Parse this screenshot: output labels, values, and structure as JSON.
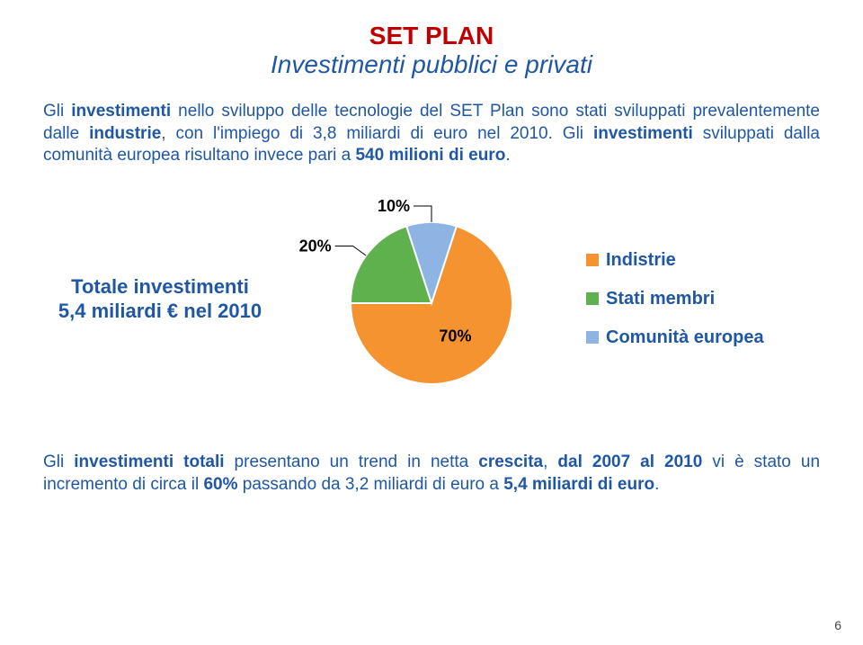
{
  "colors": {
    "red": "#c00000",
    "blue": "#1f57a5",
    "black": "#000000"
  },
  "title": {
    "line1": "SET PLAN",
    "line2": "Investimenti pubblici e privati"
  },
  "para1": {
    "prefix": "Gli ",
    "bold1": "investimenti",
    "mid1": " nello sviluppo delle tecnologie del SET Plan sono stati sviluppati prevalentemente dalle ",
    "bold2": "industrie",
    "mid2": ", con l'impiego di 3,8 miliardi di euro nel 2010. Gli ",
    "bold3": "investimenti",
    "mid3": " sviluppati dalla comunità europea risultano invece pari a ",
    "bold4": "540 milioni di euro",
    "end": "."
  },
  "invest_caption": {
    "line1": "Totale investimenti",
    "line2": "5,4 miliardi € nel 2010"
  },
  "chart": {
    "type": "pie",
    "background_color": "#ffffff",
    "slices": [
      {
        "label": "70%",
        "value": 70,
        "color": "#f59331",
        "legend": "Indistrie"
      },
      {
        "label": "20%",
        "value": 20,
        "color": "#5fb14d",
        "legend": "Stati membri"
      },
      {
        "label": "10%",
        "value": 10,
        "color": "#8eb4e3",
        "legend": "Comunità europea"
      }
    ],
    "label_fontsize": 18,
    "legend_fontsize": 20,
    "legend_color": "#1f57a5",
    "stroke": "#ffffff",
    "stroke_width": 2
  },
  "legend": {
    "items": [
      {
        "color": "#f59331",
        "text": "Indistrie"
      },
      {
        "color": "#5fb14d",
        "text": "Stati membri"
      },
      {
        "color": "#8eb4e3",
        "text": "Comunità europea"
      }
    ]
  },
  "para2": {
    "prefix": "Gli ",
    "bold1": "investimenti totali",
    "mid1": " presentano un trend in netta ",
    "bold2": "crescita",
    "mid2": ", ",
    "bold3": "dal 2007 al 2010",
    "mid3": " vi è stato un incremento di circa il ",
    "bold4": "60%",
    "mid4": " passando da 3,2 miliardi di euro a ",
    "bold5": "5,4 miliardi di euro",
    "end": "."
  },
  "page_number": "6"
}
